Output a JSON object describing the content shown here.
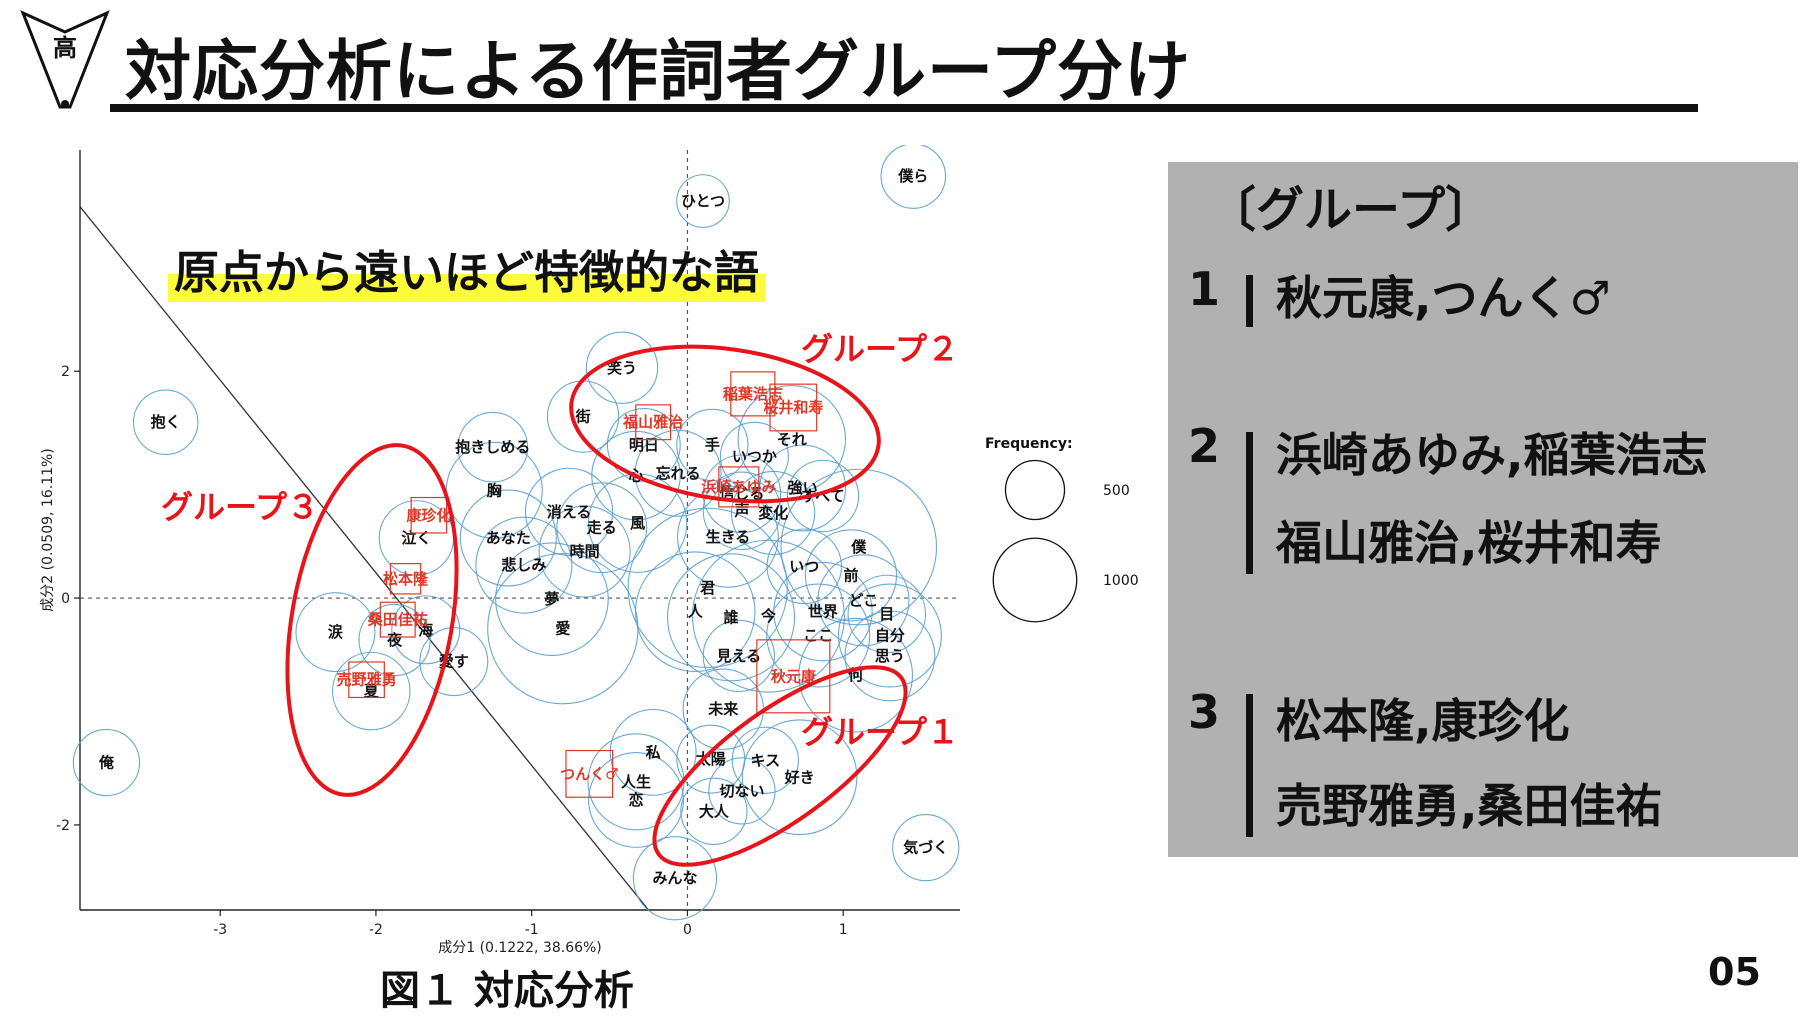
{
  "header": {
    "logo_char": "高",
    "title": "対応分析による作詞者グループ分け"
  },
  "callout": "原点から遠いほど特徴的な語",
  "figure_caption": "図１ 対応分析",
  "page_number": "05",
  "colors": {
    "group_ellipse": "#e8141c",
    "artist_label": "#e03828",
    "word_circle": "#5aa0cf",
    "highlight": "#fcfc3c",
    "panel_bg": "#b1b1b1"
  },
  "groups_panel": {
    "title": "〔グループ〕",
    "groups": [
      {
        "number": "1",
        "lines": [
          "秋元康,つんく♂"
        ]
      },
      {
        "number": "2",
        "lines": [
          "浜崎あゆみ,稲葉浩志",
          "福山雅治,桜井和寿"
        ]
      },
      {
        "number": "3",
        "lines": [
          "松本隆,康珍化",
          "売野雅勇,桑田佳祐"
        ]
      }
    ]
  },
  "chart_data": {
    "type": "scatter",
    "title": "",
    "xlabel": "成分1 (0.1222, 38.66%)",
    "ylabel": "成分2 (0.0509, 16.11%)",
    "xlim": [
      -3.9,
      1.75
    ],
    "ylim": [
      -2.75,
      3.95
    ],
    "xticks": [
      -3,
      -2,
      -1,
      0,
      1
    ],
    "yticks": [
      -2,
      0,
      2
    ],
    "xtick_labels": [
      "-3",
      "-2",
      "-1",
      "0",
      "1"
    ],
    "ytick_labels": [
      "-2",
      "0",
      "2"
    ],
    "grid": false,
    "reference_lines": "dashed lines at x=0 and y=0; solid diagonal line",
    "diagonal_line": [
      [
        -3.9,
        3.45
      ],
      [
        -0.25,
        -2.75
      ]
    ],
    "size_legend": {
      "title": "Frequency:",
      "items": [
        {
          "label": "500",
          "value": 500
        },
        {
          "label": "1000",
          "value": 1000
        }
      ]
    },
    "artists": [
      {
        "label": "稲葉浩志",
        "x": 0.42,
        "y": 1.8,
        "freq": 400
      },
      {
        "label": "福山雅治",
        "x": -0.22,
        "y": 1.55,
        "freq": 250
      },
      {
        "label": "桜井和寿",
        "x": 0.68,
        "y": 1.68,
        "freq": 450
      },
      {
        "label": "浜崎あゆみ",
        "x": 0.33,
        "y": 0.98,
        "freq": 330
      },
      {
        "label": "康珍化",
        "x": -1.66,
        "y": 0.73,
        "freq": 260
      },
      {
        "label": "松本隆",
        "x": -1.81,
        "y": 0.17,
        "freq": 190
      },
      {
        "label": "桑田佳祐",
        "x": -1.86,
        "y": -0.19,
        "freq": 250
      },
      {
        "label": "売野雅勇",
        "x": -2.06,
        "y": -0.72,
        "freq": 260
      },
      {
        "label": "秋元康",
        "x": 0.68,
        "y": -0.69,
        "freq": 1100
      },
      {
        "label": "つんく♂",
        "x": -0.63,
        "y": -1.55,
        "freq": 450
      }
    ],
    "groups": [
      {
        "label": "グループ１",
        "members": [
          "秋元康",
          "つんく♂"
        ]
      },
      {
        "label": "グループ２",
        "members": [
          "稲葉浩志",
          "福山雅治",
          "桜井和寿",
          "浜崎あゆみ"
        ]
      },
      {
        "label": "グループ３",
        "members": [
          "康珍化",
          "松本隆",
          "桑田佳祐",
          "売野雅勇"
        ]
      }
    ],
    "words": [
      {
        "label": "ひとつ",
        "x": 0.1,
        "y": 3.5,
        "freq": 120
      },
      {
        "label": "僕ら",
        "x": 1.45,
        "y": 3.72,
        "freq": 180
      },
      {
        "label": "抱く",
        "x": -3.35,
        "y": 1.55,
        "freq": 180
      },
      {
        "label": "笑う",
        "x": -0.42,
        "y": 2.03,
        "freq": 220
      },
      {
        "label": "街",
        "x": -0.67,
        "y": 1.6,
        "freq": 220
      },
      {
        "label": "明日",
        "x": -0.28,
        "y": 1.35,
        "freq": 230
      },
      {
        "label": "手",
        "x": 0.16,
        "y": 1.35,
        "freq": 220
      },
      {
        "label": "それ",
        "x": 0.67,
        "y": 1.4,
        "freq": 500
      },
      {
        "label": "いつか",
        "x": 0.43,
        "y": 1.25,
        "freq": 200
      },
      {
        "label": "心",
        "x": -0.33,
        "y": 1.08,
        "freq": 340
      },
      {
        "label": "忘れる",
        "x": -0.06,
        "y": 1.1,
        "freq": 320
      },
      {
        "label": "強い",
        "x": 0.74,
        "y": 0.97,
        "freq": 320
      },
      {
        "label": "すべて",
        "x": 0.87,
        "y": 0.9,
        "freq": 220
      },
      {
        "label": "信じる",
        "x": 0.35,
        "y": 0.92,
        "freq": 260
      },
      {
        "label": "声",
        "x": 0.35,
        "y": 0.77,
        "freq": 260
      },
      {
        "label": "変化",
        "x": 0.55,
        "y": 0.75,
        "freq": 300
      },
      {
        "label": "抱きしめる",
        "x": -1.25,
        "y": 1.33,
        "freq": 210
      },
      {
        "label": "胸",
        "x": -1.24,
        "y": 0.95,
        "freq": 400
      },
      {
        "label": "消える",
        "x": -0.76,
        "y": 0.76,
        "freq": 330
      },
      {
        "label": "走る",
        "x": -0.55,
        "y": 0.62,
        "freq": 350
      },
      {
        "label": "風",
        "x": -0.32,
        "y": 0.66,
        "freq": 420
      },
      {
        "label": "あなた",
        "x": -1.15,
        "y": 0.53,
        "freq": 400
      },
      {
        "label": "悲しみ",
        "x": -1.05,
        "y": 0.29,
        "freq": 400
      },
      {
        "label": "時間",
        "x": -0.66,
        "y": 0.41,
        "freq": 360
      },
      {
        "label": "生きる",
        "x": 0.26,
        "y": 0.54,
        "freq": 440
      },
      {
        "label": "僕",
        "x": 1.1,
        "y": 0.45,
        "freq": 1050
      },
      {
        "label": "いつ",
        "x": 0.75,
        "y": 0.28,
        "freq": 240
      },
      {
        "label": "前",
        "x": 1.05,
        "y": 0.2,
        "freq": 360
      },
      {
        "label": "君",
        "x": 0.13,
        "y": 0.09,
        "freq": 1100
      },
      {
        "label": "どこ",
        "x": 1.13,
        "y": -0.02,
        "freq": 360
      },
      {
        "label": "人",
        "x": 0.05,
        "y": -0.12,
        "freq": 620
      },
      {
        "label": "世界",
        "x": 0.87,
        "y": -0.12,
        "freq": 420
      },
      {
        "label": "目",
        "x": 1.28,
        "y": -0.14,
        "freq": 260
      },
      {
        "label": "誰",
        "x": 0.28,
        "y": -0.17,
        "freq": 700
      },
      {
        "label": "今",
        "x": 0.52,
        "y": -0.16,
        "freq": 1000
      },
      {
        "label": "ここ",
        "x": 0.84,
        "y": -0.33,
        "freq": 460
      },
      {
        "label": "自分",
        "x": 1.3,
        "y": -0.33,
        "freq": 460
      },
      {
        "label": "思う",
        "x": 1.3,
        "y": -0.51,
        "freq": 350
      },
      {
        "label": "何",
        "x": 1.08,
        "y": -0.68,
        "freq": 560
      },
      {
        "label": "見える",
        "x": 0.33,
        "y": -0.51,
        "freq": 220
      },
      {
        "label": "夢",
        "x": -0.87,
        "y": -0.01,
        "freq": 550
      },
      {
        "label": "愛",
        "x": -0.8,
        "y": -0.27,
        "freq": 980
      },
      {
        "label": "泣く",
        "x": -1.74,
        "y": 0.53,
        "freq": 240
      },
      {
        "label": "涙",
        "x": -2.26,
        "y": -0.3,
        "freq": 270
      },
      {
        "label": "夜",
        "x": -1.88,
        "y": -0.37,
        "freq": 220
      },
      {
        "label": "海",
        "x": -1.68,
        "y": -0.28,
        "freq": 200
      },
      {
        "label": "愛す",
        "x": -1.5,
        "y": -0.56,
        "freq": 200
      },
      {
        "label": "夏",
        "x": -2.03,
        "y": -0.82,
        "freq": 260
      },
      {
        "label": "未来",
        "x": 0.23,
        "y": -0.98,
        "freq": 280
      },
      {
        "label": "私",
        "x": -0.22,
        "y": -1.36,
        "freq": 320
      },
      {
        "label": "太陽",
        "x": 0.15,
        "y": -1.42,
        "freq": 200
      },
      {
        "label": "キス",
        "x": 0.5,
        "y": -1.43,
        "freq": 190
      },
      {
        "label": "人生",
        "x": -0.33,
        "y": -1.62,
        "freq": 400
      },
      {
        "label": "切ない",
        "x": 0.35,
        "y": -1.7,
        "freq": 190
      },
      {
        "label": "好き",
        "x": 0.72,
        "y": -1.58,
        "freq": 570
      },
      {
        "label": "恋",
        "x": -0.33,
        "y": -1.78,
        "freq": 390
      },
      {
        "label": "大人",
        "x": 0.17,
        "y": -1.88,
        "freq": 190
      },
      {
        "label": "俺",
        "x": -3.73,
        "y": -1.45,
        "freq": 190
      },
      {
        "label": "気づく",
        "x": 1.53,
        "y": -2.2,
        "freq": 190
      },
      {
        "label": "みんな",
        "x": -0.08,
        "y": -2.47,
        "freq": 300
      }
    ]
  }
}
